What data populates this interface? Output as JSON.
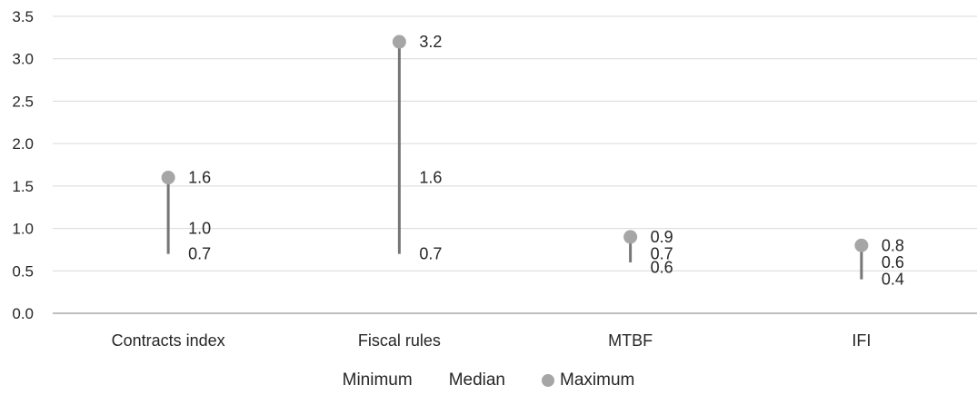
{
  "chart_data": {
    "type": "range",
    "title": "",
    "xlabel": "",
    "ylabel": "",
    "categories": [
      "Contracts index",
      "Fiscal rules",
      "MTBF",
      "IFI"
    ],
    "series": [
      {
        "name": "Minimum",
        "values": [
          0.7,
          0.7,
          0.6,
          0.4
        ]
      },
      {
        "name": "Median",
        "values": [
          1.0,
          1.6,
          0.7,
          0.6
        ]
      },
      {
        "name": "Maximum",
        "values": [
          1.6,
          3.2,
          0.9,
          0.8
        ]
      }
    ],
    "ylim": [
      0,
      3.5
    ],
    "yticks": [
      "0.0",
      "0.5",
      "1.0",
      "1.5",
      "2.0",
      "2.5",
      "3.0",
      "3.5"
    ],
    "grid": true,
    "legend_position": "bottom",
    "colors": {
      "line": "#767676",
      "marker": "#a6a6a6",
      "grid": "#d9d9d9",
      "axis": "#bfbfbf"
    }
  },
  "legend": {
    "minimum": "Minimum",
    "median": "Median",
    "maximum": "Maximum"
  }
}
